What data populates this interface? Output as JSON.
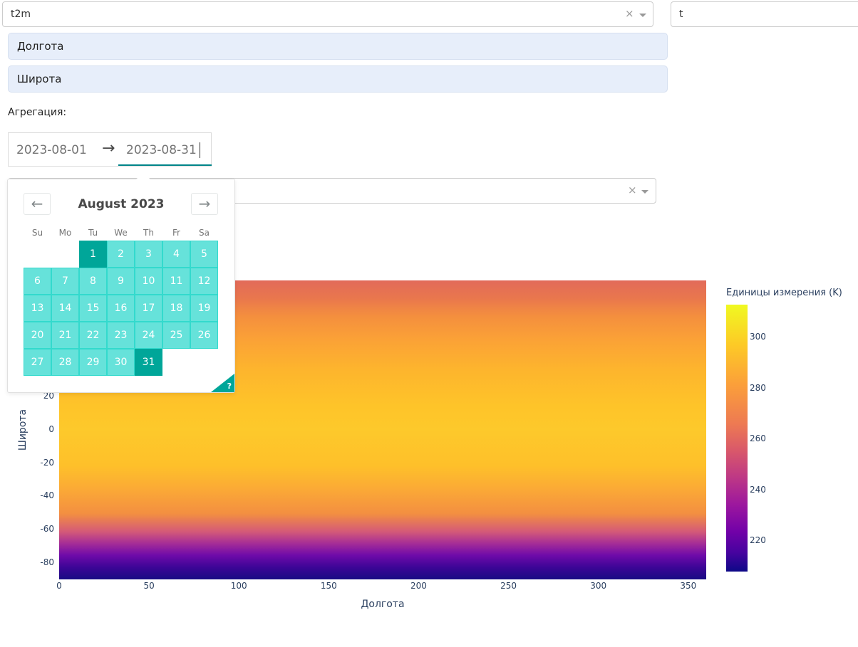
{
  "selectors": {
    "variable": {
      "value": "t2m"
    },
    "right": {
      "value": "t"
    },
    "third": {
      "value": ""
    }
  },
  "accordions": [
    "Долгота",
    "Широта"
  ],
  "aggregation_label": "Агрегация:",
  "date_range": {
    "start": "2023-08-01",
    "end": "2023-08-31",
    "arrow": "→"
  },
  "calendar": {
    "month_title": "August 2023",
    "prev": "←",
    "next": "→",
    "help": "?",
    "weekdays": [
      "Su",
      "Mo",
      "Tu",
      "We",
      "Th",
      "Fr",
      "Sa"
    ],
    "selected_start": 1,
    "selected_end": 31
  },
  "icons": {
    "clear": "×",
    "dropdown": "chevron-down-icon"
  },
  "chart_data": {
    "type": "heatmap",
    "xlabel": "Долгота",
    "ylabel": "Широта",
    "colorbar_title": "Единицы измерения (K)",
    "colorscale": "plasma",
    "x_ticks": [
      "0",
      "50",
      "100",
      "150",
      "200",
      "250",
      "300",
      "350"
    ],
    "y_ticks": [
      "20",
      "0",
      "-20",
      "-40",
      "-60",
      "-80"
    ],
    "colorbar_ticks": [
      "300",
      "280",
      "260",
      "240",
      "220"
    ],
    "xlim": [
      0,
      360
    ],
    "ylim": [
      -90,
      90
    ],
    "zlim": [
      208,
      313
    ]
  }
}
